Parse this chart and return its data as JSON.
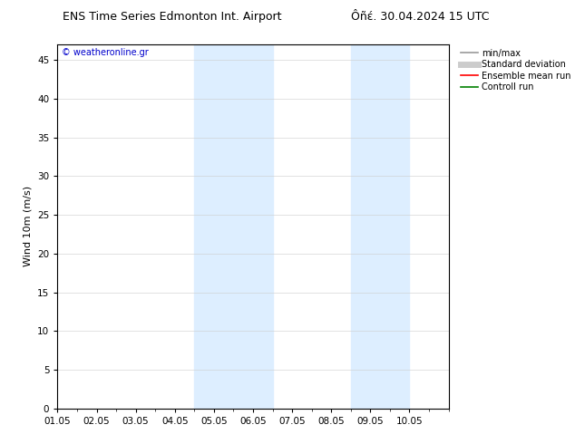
{
  "title_left": "ENS Time Series Edmonton Int. Airport",
  "title_right": "Ôñέ. 30.04.2024 15 UTC",
  "watermark": "© weatheronline.gr",
  "ylabel": "Wind 10m (m/s)",
  "xlim": [
    0,
    10
  ],
  "ylim": [
    0,
    47
  ],
  "yticks": [
    0,
    5,
    10,
    15,
    20,
    25,
    30,
    35,
    40,
    45
  ],
  "xtick_labels": [
    "01.05",
    "02.05",
    "03.05",
    "04.05",
    "05.05",
    "06.05",
    "07.05",
    "08.05",
    "09.05",
    "10.05"
  ],
  "xtick_positions": [
    0,
    1,
    2,
    3,
    4,
    5,
    6,
    7,
    8,
    9
  ],
  "shaded_bands": [
    {
      "x_start": 3.5,
      "x_end": 5.5
    },
    {
      "x_start": 7.5,
      "x_end": 9.0
    }
  ],
  "shade_color": "#ddeeff",
  "bg_color": "#ffffff",
  "legend_items": [
    {
      "label": "min/max",
      "color": "#999999",
      "lw": 1.2,
      "style": "solid"
    },
    {
      "label": "Standard deviation",
      "color": "#cccccc",
      "lw": 5,
      "style": "solid"
    },
    {
      "label": "Ensemble mean run",
      "color": "#ff0000",
      "lw": 1.2,
      "style": "solid"
    },
    {
      "label": "Controll run",
      "color": "#008000",
      "lw": 1.2,
      "style": "solid"
    }
  ],
  "title_fontsize": 9,
  "watermark_color": "#0000cc",
  "axis_label_fontsize": 8,
  "tick_fontsize": 7.5,
  "legend_fontsize": 7
}
